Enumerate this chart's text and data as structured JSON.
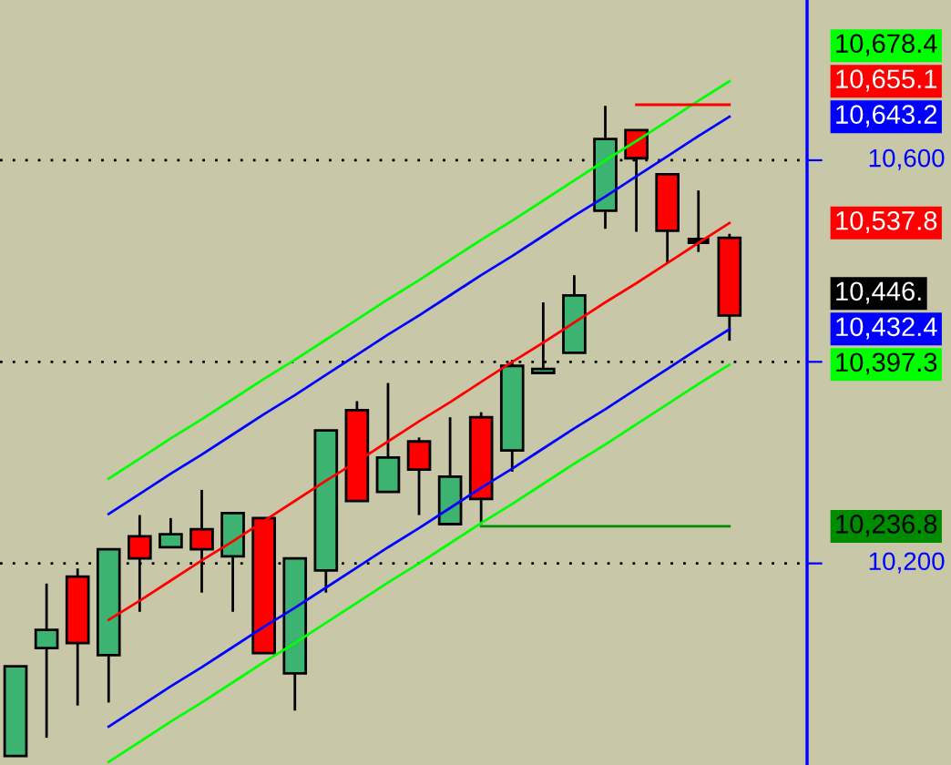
{
  "chart_data": {
    "type": "candlestick",
    "categories": [
      null,
      null,
      null,
      null,
      null,
      null,
      null,
      null,
      null,
      null,
      null,
      null,
      null,
      null,
      null,
      null,
      null,
      null,
      null,
      null,
      null,
      null,
      null,
      null,
      null,
      null
    ],
    "ohlc": [
      [
        10009,
        10098,
        10009,
        10098
      ],
      [
        10116,
        10180,
        10027,
        10134
      ],
      [
        10187,
        10195,
        10059,
        10121
      ],
      [
        10109,
        10214,
        10062,
        10214
      ],
      [
        10227,
        10248,
        10152,
        10205
      ],
      [
        10216,
        10245,
        10216,
        10229
      ],
      [
        10234,
        10273,
        10171,
        10214
      ],
      [
        10207,
        10250,
        10152,
        10250
      ],
      [
        10245,
        10245,
        10111,
        10111
      ],
      [
        10091,
        10205,
        10054,
        10205
      ],
      [
        10193,
        10332,
        10171,
        10332
      ],
      [
        10352,
        10361,
        10262,
        10262
      ],
      [
        10271,
        10379,
        10271,
        10305
      ],
      [
        10321,
        10325,
        10248,
        10293
      ],
      [
        10239,
        10345,
        10239,
        10286
      ],
      [
        10345,
        10350,
        10239,
        10264
      ],
      [
        10312,
        10402,
        10291,
        10396
      ],
      [
        10389,
        10459,
        10389,
        10393
      ],
      [
        10409,
        10486,
        10409,
        10466
      ],
      [
        10550,
        10654,
        10532,
        10621
      ],
      [
        10630,
        10630,
        10529,
        10602
      ],
      [
        10586,
        10586,
        10498,
        10530
      ],
      [
        10520,
        10570,
        10509,
        10520
      ],
      [
        10523,
        10527,
        10421,
        10446
      ],
      null,
      null
    ],
    "colors": [
      "#3cb371",
      "#3cb371",
      "#ff0000",
      "#3cb371",
      "#ff0000",
      "#3cb371",
      "#ff0000",
      "#3cb371",
      "#ff0000",
      "#3cb371",
      "#3cb371",
      "#ff0000",
      "#3cb371",
      "#ff0000",
      "#3cb371",
      "#ff0000",
      "#3cb371",
      "#3cb371",
      "#3cb371",
      "#3cb371",
      "#ff0000",
      "#ff0000",
      "#000000",
      "#ff0000",
      null,
      null
    ],
    "series": [
      {
        "type": "line",
        "color": "#00ff00",
        "values": [
          null,
          null,
          null,
          10284,
          10304,
          10324,
          10343,
          10363,
          10383,
          10402,
          10422,
          10442,
          10462,
          10481,
          10501,
          10521,
          10540,
          10560,
          10580,
          10600,
          10619,
          10639,
          10659,
          10678.4,
          null,
          null
        ]
      },
      {
        "type": "line",
        "color": "#0000ff",
        "values": [
          null,
          null,
          null,
          10249,
          10269,
          10289,
          10308,
          10328,
          10348,
          10367,
          10387,
          10407,
          10427,
          10446,
          10466,
          10486,
          10505,
          10525,
          10545,
          10564,
          10584,
          10604,
          10624,
          10643.2,
          null,
          null
        ]
      },
      {
        "type": "line",
        "color": "#ff0000",
        "values": [
          null,
          null,
          null,
          10144,
          10163,
          10183,
          10203,
          10222,
          10242,
          10262,
          10282,
          10301,
          10321,
          10341,
          10360,
          10380,
          10400,
          10419,
          10439,
          10459,
          10478,
          10498,
          10518,
          10537.8,
          null,
          null
        ]
      },
      {
        "type": "line",
        "color": "#0000ff",
        "values": [
          null,
          null,
          null,
          10038,
          10058,
          10078,
          10097,
          10117,
          10137,
          10156,
          10176,
          10196,
          10216,
          10235,
          10255,
          10275,
          10294,
          10314,
          10334,
          10353,
          10373,
          10393,
          10413,
          10432.4,
          null,
          null
        ]
      },
      {
        "type": "line",
        "color": "#00ff00",
        "values": [
          null,
          null,
          null,
          10003,
          10023,
          10043,
          10062,
          10082,
          10102,
          10121,
          10141,
          10161,
          10181,
          10200,
          10220,
          10240,
          10259,
          10279,
          10299,
          10318,
          10338,
          10358,
          10378,
          10397.3,
          null,
          null
        ]
      },
      {
        "type": "line",
        "color": "#ff0000",
        "values": [
          null,
          null,
          null,
          null,
          null,
          null,
          null,
          null,
          null,
          null,
          null,
          null,
          null,
          null,
          null,
          null,
          null,
          null,
          null,
          null,
          10655.1,
          10655.1,
          10655.1,
          10655.1,
          null,
          null
        ]
      },
      {
        "type": "line",
        "color": "#008c00",
        "values": [
          null,
          null,
          null,
          null,
          null,
          null,
          null,
          null,
          null,
          null,
          null,
          null,
          null,
          null,
          null,
          10236.8,
          10236.8,
          10236.8,
          10236.8,
          10236.8,
          10236.8,
          10236.8,
          10236.8,
          10236.8,
          null,
          null
        ]
      }
    ],
    "annotations": [
      "10,678.4",
      "10,655.1",
      "10,643.2",
      "10,537.8",
      "10,446.",
      "10,432.4",
      "10,397.3",
      "10,236.8"
    ],
    "ylim": [
      10000,
      10759
    ],
    "yticks": [
      {
        "value": 10600,
        "label": "10,600"
      },
      {
        "value": 10400,
        "label": null
      },
      {
        "value": 10200,
        "label": "10,200"
      }
    ],
    "grid": "y",
    "tick_labels": "y"
  }
}
